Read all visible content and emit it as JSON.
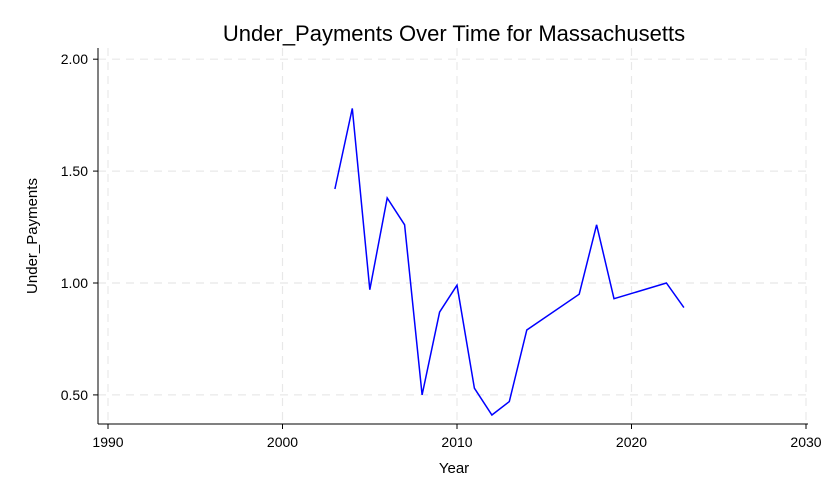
{
  "chart_data": {
    "type": "line",
    "title": "Under_Payments Over Time for Massachusetts",
    "xlabel": "Year",
    "ylabel": "Under_Payments",
    "xlim": [
      1990,
      2030
    ],
    "ylim": [
      0.37,
      2.05
    ],
    "x_ticks": [
      1990,
      2000,
      2010,
      2020,
      2030
    ],
    "y_ticks": [
      0.5,
      1.0,
      1.5,
      2.0
    ],
    "x_tick_labels": [
      "1990",
      "2000",
      "2010",
      "2020",
      "2030"
    ],
    "y_tick_labels": [
      "0.50",
      "1.00",
      "1.50",
      "2.00"
    ],
    "grid": true,
    "series": [
      {
        "color": "#0000ff",
        "x": [
          2003,
          2004,
          2005,
          2006,
          2007,
          2008,
          2009,
          2010,
          2011,
          2012,
          2013,
          2014,
          2017,
          2018,
          2019,
          2022,
          2023
        ],
        "y": [
          1.42,
          1.78,
          0.97,
          1.38,
          1.26,
          0.5,
          0.87,
          0.99,
          0.53,
          0.41,
          0.47,
          0.79,
          0.95,
          1.26,
          0.93,
          1.0,
          0.89
        ]
      }
    ]
  }
}
